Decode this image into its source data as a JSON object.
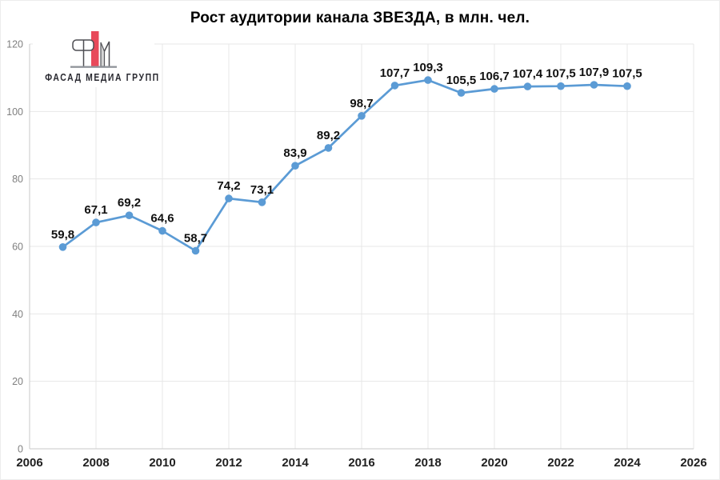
{
  "logo": {
    "text": "ФАСАД МЕДИА ГРУПП",
    "colors": {
      "accent": "#e8495a",
      "leg_fill": "#d6d6d6",
      "baseline": "#8f9399",
      "text": "#2a2a31"
    }
  },
  "chart_data": {
    "type": "line",
    "title": "Рост аудитории канала ЗВЕЗДА, в млн. чел.",
    "x": [
      2007,
      2008,
      2009,
      2010,
      2011,
      2012,
      2013,
      2014,
      2015,
      2016,
      2017,
      2018,
      2019,
      2020,
      2021,
      2022,
      2023,
      2024
    ],
    "values": [
      59.8,
      67.1,
      69.2,
      64.6,
      58.7,
      74.2,
      73.1,
      83.9,
      89.2,
      98.7,
      107.7,
      109.3,
      105.5,
      106.7,
      107.4,
      107.5,
      107.9,
      107.5
    ],
    "labels": [
      "59,8",
      "67,1",
      "69,2",
      "64,6",
      "58,7",
      "74,2",
      "73,1",
      "83,9",
      "89,2",
      "98,7",
      "107,7",
      "109,3",
      "105,5",
      "106,7",
      "107,4",
      "107,5",
      "107,9",
      "107,5"
    ],
    "x_ticks": [
      2006,
      2008,
      2010,
      2012,
      2014,
      2016,
      2018,
      2020,
      2022,
      2024,
      2026
    ],
    "y_ticks": [
      0,
      20,
      40,
      60,
      80,
      100,
      120
    ],
    "xlim": [
      2006,
      2026
    ],
    "ylim": [
      0,
      120
    ],
    "grid": true,
    "legend": "none",
    "colors": {
      "line": "#5b9bd5",
      "marker": "#5b9bd5",
      "grid": "#e7e7e7",
      "axis": "#c9c9c9",
      "y_tick_text": "#7f7f7f",
      "x_tick_text": "#1f1f1f",
      "data_label_text": "#111111",
      "title_text": "#000000"
    }
  }
}
